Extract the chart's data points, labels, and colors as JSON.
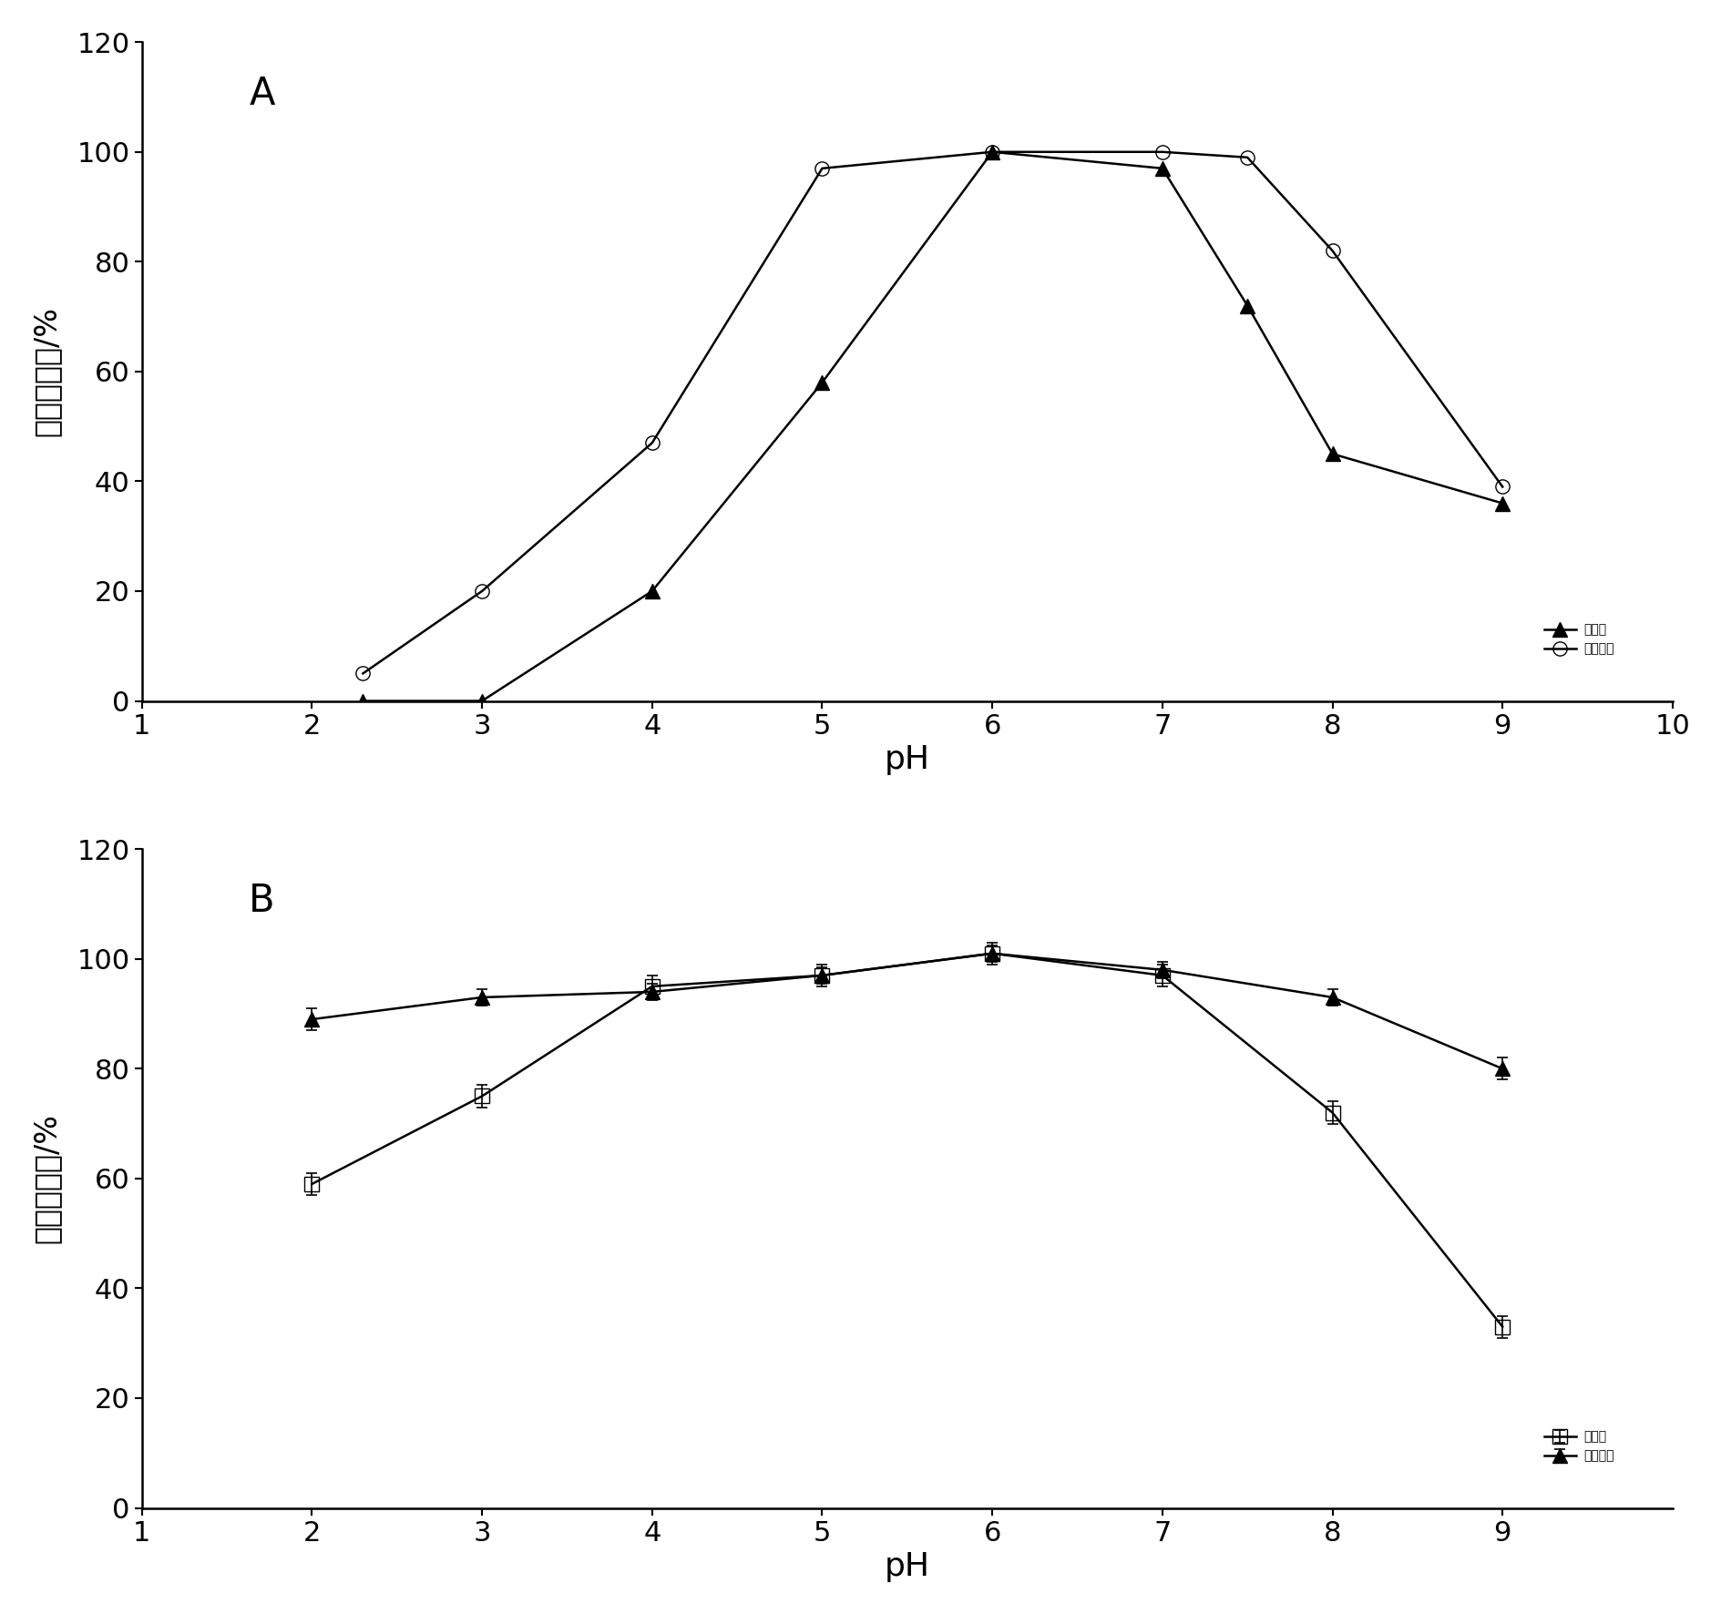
{
  "panel_A": {
    "label": "A",
    "free_enzyme": {
      "label": "游离酶",
      "x": [
        2.3,
        3.0,
        4.0,
        5.0,
        6.0,
        7.0,
        7.5,
        8.0,
        9.0
      ],
      "y": [
        0,
        0,
        20,
        58,
        100,
        97,
        72,
        45,
        36
      ],
      "marker": "^",
      "linestyle": "-",
      "color": "black",
      "fillstyle": "full"
    },
    "immob_enzyme": {
      "label": "固定化酶",
      "x": [
        2.3,
        3.0,
        4.0,
        5.0,
        6.0,
        7.0,
        7.5,
        8.0,
        9.0
      ],
      "y": [
        5,
        20,
        47,
        97,
        100,
        100,
        99,
        82,
        39
      ],
      "marker": "o",
      "linestyle": "-",
      "color": "black",
      "fillstyle": "none"
    },
    "xlabel": "pH",
    "ylabel": "相对酶活力/%",
    "xlim": [
      1,
      10
    ],
    "ylim": [
      0,
      120
    ],
    "xticks": [
      1,
      2,
      3,
      4,
      5,
      6,
      7,
      8,
      9,
      10
    ],
    "yticks": [
      0,
      20,
      40,
      60,
      80,
      100,
      120
    ]
  },
  "panel_B": {
    "label": "B",
    "free_enzyme": {
      "label": "游离酶",
      "x": [
        2,
        3,
        4,
        5,
        6,
        7,
        8,
        9
      ],
      "y": [
        59,
        75,
        95,
        97,
        101,
        97,
        72,
        33
      ],
      "yerr": [
        2.0,
        2.0,
        2.0,
        2.0,
        2.0,
        2.0,
        2.0,
        2.0
      ],
      "marker": "s",
      "linestyle": "-",
      "color": "black",
      "fillstyle": "none"
    },
    "immob_enzyme": {
      "label": "固定化酶",
      "x": [
        2,
        3,
        4,
        5,
        6,
        7,
        8,
        9
      ],
      "y": [
        89,
        93,
        94,
        97,
        101,
        98,
        93,
        80
      ],
      "yerr": [
        2.0,
        1.5,
        1.5,
        1.5,
        1.5,
        1.5,
        1.5,
        2.0
      ],
      "marker": "^",
      "linestyle": "-",
      "color": "black",
      "fillstyle": "full"
    },
    "xlabel": "pH",
    "ylabel": "相对酶活力/%",
    "xlim": [
      1,
      10
    ],
    "ylim": [
      0,
      120
    ],
    "xticks": [
      1,
      2,
      3,
      4,
      5,
      6,
      7,
      8,
      9
    ],
    "yticks": [
      0,
      20,
      40,
      60,
      80,
      100,
      120
    ]
  },
  "background_color": "#ffffff",
  "font_color": "#000000",
  "figsize": [
    18.9,
    17.72
  ],
  "dpi": 100
}
